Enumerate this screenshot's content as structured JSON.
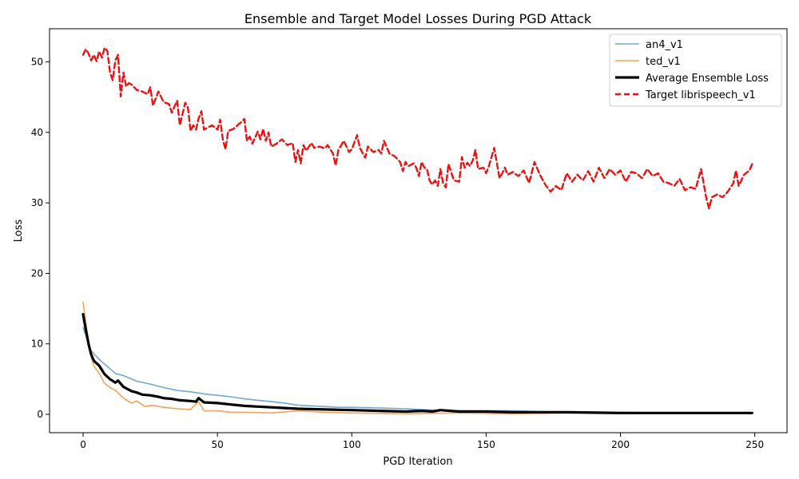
{
  "chart_data": {
    "type": "line",
    "title": "Ensemble and Target Model Losses During PGD Attack",
    "xlabel": "PGD Iteration",
    "ylabel": "Loss",
    "xlim": [
      -12.5,
      262
    ],
    "ylim": [
      -2.6,
      54.7
    ],
    "xticks": [
      0,
      50,
      100,
      150,
      200,
      250
    ],
    "yticks": [
      0,
      10,
      20,
      30,
      40,
      50
    ],
    "grid": false,
    "legend_position": "top-right",
    "series_keypoints": [
      {
        "name": "an4_v1",
        "color": "#6fa8d6",
        "width": 1.6,
        "dash": "",
        "points": [
          [
            0,
            12.3
          ],
          [
            3,
            9.0
          ],
          [
            6,
            7.8
          ],
          [
            9,
            6.8
          ],
          [
            12,
            5.8
          ],
          [
            15,
            5.5
          ],
          [
            20,
            4.7
          ],
          [
            25,
            4.3
          ],
          [
            30,
            3.8
          ],
          [
            35,
            3.4
          ],
          [
            40,
            3.2
          ],
          [
            45,
            2.9
          ],
          [
            50,
            2.7
          ],
          [
            55,
            2.5
          ],
          [
            60,
            2.2
          ],
          [
            65,
            2.0
          ],
          [
            70,
            1.8
          ],
          [
            75,
            1.6
          ],
          [
            80,
            1.3
          ],
          [
            85,
            1.2
          ],
          [
            90,
            1.1
          ],
          [
            95,
            1.0
          ],
          [
            100,
            1.0
          ],
          [
            110,
            0.9
          ],
          [
            120,
            0.8
          ],
          [
            130,
            0.6
          ],
          [
            140,
            0.5
          ],
          [
            150,
            0.5
          ],
          [
            160,
            0.5
          ],
          [
            170,
            0.4
          ],
          [
            180,
            0.3
          ],
          [
            200,
            0.3
          ],
          [
            220,
            0.2
          ],
          [
            249,
            0.2
          ]
        ]
      },
      {
        "name": "ted_v1",
        "color": "#f5a25d",
        "width": 1.6,
        "dash": "",
        "points": [
          [
            0,
            15.9
          ],
          [
            1,
            13.0
          ],
          [
            2,
            10.5
          ],
          [
            3,
            8.2
          ],
          [
            4,
            6.9
          ],
          [
            6,
            5.8
          ],
          [
            8,
            4.4
          ],
          [
            10,
            3.8
          ],
          [
            12,
            3.4
          ],
          [
            15,
            2.3
          ],
          [
            18,
            1.6
          ],
          [
            20,
            1.9
          ],
          [
            23,
            1.1
          ],
          [
            26,
            1.3
          ],
          [
            30,
            1.0
          ],
          [
            35,
            0.8
          ],
          [
            40,
            0.7
          ],
          [
            43,
            1.8
          ],
          [
            45,
            0.5
          ],
          [
            50,
            0.5
          ],
          [
            55,
            0.3
          ],
          [
            60,
            0.3
          ],
          [
            70,
            0.2
          ],
          [
            80,
            0.5
          ],
          [
            90,
            0.3
          ],
          [
            100,
            0.2
          ],
          [
            120,
            0.1
          ],
          [
            140,
            0.2
          ],
          [
            160,
            0.1
          ],
          [
            180,
            0.2
          ],
          [
            200,
            0.2
          ],
          [
            230,
            0.2
          ],
          [
            249,
            0.2
          ]
        ]
      },
      {
        "name": "Average Ensemble Loss",
        "color": "#000000",
        "width": 3.2,
        "dash": "",
        "points": [
          [
            0,
            14.2
          ],
          [
            1,
            12.0
          ],
          [
            2,
            10.0
          ],
          [
            3,
            8.5
          ],
          [
            4,
            7.6
          ],
          [
            6,
            6.9
          ],
          [
            8,
            5.7
          ],
          [
            10,
            5.0
          ],
          [
            12,
            4.5
          ],
          [
            13,
            4.8
          ],
          [
            15,
            3.9
          ],
          [
            18,
            3.3
          ],
          [
            20,
            3.1
          ],
          [
            22,
            2.8
          ],
          [
            25,
            2.7
          ],
          [
            28,
            2.5
          ],
          [
            30,
            2.3
          ],
          [
            33,
            2.2
          ],
          [
            36,
            2.0
          ],
          [
            40,
            1.9
          ],
          [
            42,
            1.8
          ],
          [
            43,
            2.3
          ],
          [
            45,
            1.7
          ],
          [
            50,
            1.6
          ],
          [
            55,
            1.4
          ],
          [
            60,
            1.2
          ],
          [
            65,
            1.1
          ],
          [
            70,
            1.0
          ],
          [
            75,
            0.9
          ],
          [
            80,
            0.8
          ],
          [
            90,
            0.7
          ],
          [
            100,
            0.6
          ],
          [
            110,
            0.5
          ],
          [
            120,
            0.4
          ],
          [
            126,
            0.5
          ],
          [
            130,
            0.4
          ],
          [
            133,
            0.6
          ],
          [
            140,
            0.4
          ],
          [
            150,
            0.4
          ],
          [
            160,
            0.3
          ],
          [
            170,
            0.3
          ],
          [
            180,
            0.3
          ],
          [
            200,
            0.2
          ],
          [
            220,
            0.2
          ],
          [
            230,
            0.2
          ],
          [
            240,
            0.2
          ],
          [
            249,
            0.2
          ]
        ]
      },
      {
        "name": "Target librispeech_v1",
        "color": "#ee1111",
        "width": 2.4,
        "dash": "7,4",
        "points": [
          [
            0,
            51.0
          ],
          [
            1,
            51.8
          ],
          [
            2,
            51.2
          ],
          [
            3,
            50.2
          ],
          [
            4,
            51.0
          ],
          [
            5,
            50.1
          ],
          [
            6,
            51.5
          ],
          [
            7,
            50.6
          ],
          [
            8,
            52.0
          ],
          [
            9,
            51.6
          ],
          [
            10,
            48.5
          ],
          [
            11,
            47.4
          ],
          [
            12,
            50.2
          ],
          [
            13,
            51.0
          ],
          [
            14,
            45.1
          ],
          [
            15,
            48.5
          ],
          [
            16,
            46.5
          ],
          [
            17,
            47.0
          ],
          [
            18,
            46.8
          ],
          [
            20,
            46.0
          ],
          [
            22,
            45.8
          ],
          [
            24,
            45.4
          ],
          [
            25,
            46.4
          ],
          [
            26,
            43.8
          ],
          [
            28,
            45.8
          ],
          [
            30,
            44.3
          ],
          [
            32,
            44.0
          ],
          [
            33,
            42.8
          ],
          [
            35,
            44.5
          ],
          [
            36,
            41.0
          ],
          [
            38,
            44.2
          ],
          [
            39,
            43.5
          ],
          [
            40,
            40.2
          ],
          [
            41,
            41.0
          ],
          [
            42,
            40.4
          ],
          [
            43,
            42.0
          ],
          [
            44,
            43.0
          ],
          [
            45,
            40.4
          ],
          [
            46,
            40.6
          ],
          [
            48,
            41.0
          ],
          [
            50,
            40.4
          ],
          [
            51,
            41.8
          ],
          [
            52,
            39.0
          ],
          [
            53,
            37.6
          ],
          [
            54,
            40.2
          ],
          [
            56,
            40.5
          ],
          [
            58,
            41.2
          ],
          [
            59,
            41.5
          ],
          [
            60,
            41.9
          ],
          [
            61,
            38.8
          ],
          [
            62,
            39.4
          ],
          [
            63,
            38.4
          ],
          [
            65,
            40.1
          ],
          [
            66,
            39.0
          ],
          [
            67,
            40.5
          ],
          [
            68,
            38.8
          ],
          [
            69,
            40.0
          ],
          [
            70,
            38.0
          ],
          [
            72,
            38.4
          ],
          [
            74,
            39.0
          ],
          [
            76,
            38.2
          ],
          [
            78,
            38.5
          ],
          [
            79,
            35.8
          ],
          [
            80,
            37.5
          ],
          [
            81,
            35.6
          ],
          [
            82,
            38.2
          ],
          [
            83,
            37.4
          ],
          [
            85,
            38.5
          ],
          [
            86,
            37.8
          ],
          [
            88,
            38.0
          ],
          [
            90,
            37.7
          ],
          [
            91,
            38.2
          ],
          [
            93,
            37.0
          ],
          [
            94,
            35.3
          ],
          [
            95,
            37.5
          ],
          [
            97,
            38.8
          ],
          [
            99,
            37.2
          ],
          [
            100,
            37.6
          ],
          [
            102,
            39.6
          ],
          [
            103,
            37.8
          ],
          [
            105,
            36.4
          ],
          [
            106,
            38.0
          ],
          [
            108,
            37.2
          ],
          [
            110,
            37.5
          ],
          [
            111,
            37.0
          ],
          [
            112,
            38.8
          ],
          [
            114,
            37.0
          ],
          [
            116,
            36.6
          ],
          [
            118,
            35.8
          ],
          [
            119,
            34.5
          ],
          [
            120,
            35.8
          ],
          [
            121,
            35.2
          ],
          [
            123,
            35.6
          ],
          [
            124,
            35.0
          ],
          [
            125,
            33.8
          ],
          [
            126,
            35.8
          ],
          [
            127,
            35.0
          ],
          [
            128,
            34.8
          ],
          [
            129,
            33.1
          ],
          [
            130,
            32.6
          ],
          [
            131,
            33.2
          ],
          [
            132,
            32.4
          ],
          [
            133,
            34.8
          ],
          [
            134,
            32.8
          ],
          [
            135,
            32.2
          ],
          [
            136,
            35.5
          ],
          [
            138,
            33.2
          ],
          [
            140,
            33.0
          ],
          [
            141,
            36.5
          ],
          [
            142,
            35.0
          ],
          [
            143,
            35.7
          ],
          [
            144,
            35.2
          ],
          [
            145,
            36.0
          ],
          [
            146,
            37.5
          ],
          [
            147,
            34.8
          ],
          [
            149,
            35.0
          ],
          [
            150,
            34.2
          ],
          [
            151,
            35.2
          ],
          [
            153,
            37.8
          ],
          [
            155,
            33.5
          ],
          [
            156,
            34.2
          ],
          [
            157,
            35.0
          ],
          [
            158,
            34.0
          ],
          [
            160,
            34.4
          ],
          [
            162,
            33.8
          ],
          [
            164,
            34.6
          ],
          [
            166,
            32.8
          ],
          [
            168,
            35.8
          ],
          [
            170,
            34.0
          ],
          [
            172,
            32.6
          ],
          [
            174,
            31.6
          ],
          [
            176,
            32.4
          ],
          [
            178,
            31.8
          ],
          [
            180,
            34.2
          ],
          [
            182,
            33.0
          ],
          [
            184,
            34.0
          ],
          [
            186,
            33.2
          ],
          [
            188,
            34.5
          ],
          [
            190,
            33.0
          ],
          [
            192,
            35.0
          ],
          [
            194,
            33.5
          ],
          [
            196,
            34.8
          ],
          [
            198,
            34.0
          ],
          [
            200,
            34.6
          ],
          [
            202,
            33.0
          ],
          [
            204,
            34.4
          ],
          [
            206,
            34.2
          ],
          [
            208,
            33.5
          ],
          [
            210,
            34.8
          ],
          [
            212,
            33.8
          ],
          [
            214,
            34.2
          ],
          [
            216,
            33.0
          ],
          [
            218,
            32.8
          ],
          [
            220,
            32.4
          ],
          [
            222,
            33.4
          ],
          [
            224,
            31.8
          ],
          [
            226,
            32.2
          ],
          [
            228,
            32.0
          ],
          [
            230,
            34.8
          ],
          [
            232,
            30.6
          ],
          [
            233,
            29.2
          ],
          [
            234,
            30.8
          ],
          [
            236,
            31.2
          ],
          [
            238,
            30.8
          ],
          [
            240,
            31.6
          ],
          [
            242,
            32.8
          ],
          [
            243,
            34.6
          ],
          [
            244,
            32.4
          ],
          [
            246,
            34.0
          ],
          [
            248,
            34.6
          ],
          [
            249,
            35.5
          ]
        ]
      }
    ]
  }
}
